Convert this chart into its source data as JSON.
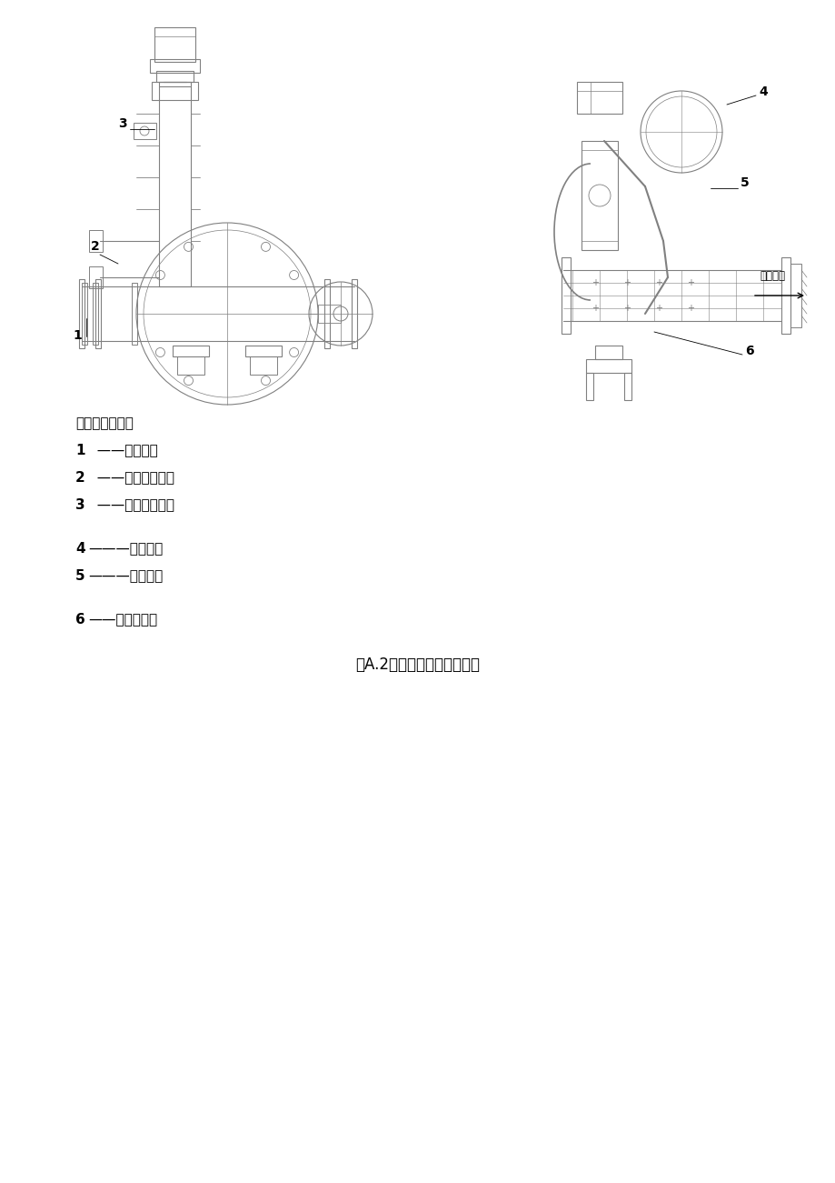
{
  "bg_color": "#ffffff",
  "title_label": "图A.2典型结构（二）示意图",
  "legend_header": "标引序号说明：",
  "legend_items": [
    {
      "num": "1",
      "dash": "——",
      "text": "手动蝶阀",
      "bold_num": true,
      "dash_style": "space"
    },
    {
      "num": "2",
      "dash": "——",
      "text": "支架机构部件",
      "bold_num": true,
      "dash_style": "space"
    },
    {
      "num": "3",
      "dash": "——",
      "text": "锁定机构部件",
      "bold_num": true,
      "dash_style": "space"
    },
    {
      "num": "4",
      "dash": "———",
      "text": "重锤机构",
      "bold_num": true,
      "dash_style": "line"
    },
    {
      "num": "5",
      "dash": "———",
      "text": "缓冲油缸",
      "bold_num": true,
      "dash_style": "line"
    },
    {
      "num": "6",
      "dash": "——",
      "text": "流速感测器",
      "bold_num": true,
      "dash_style": "space"
    }
  ],
  "water_flow_label": "水流方向",
  "text_color": "#000000",
  "line_color": "#808080",
  "draw_color": "#a0a0a0"
}
